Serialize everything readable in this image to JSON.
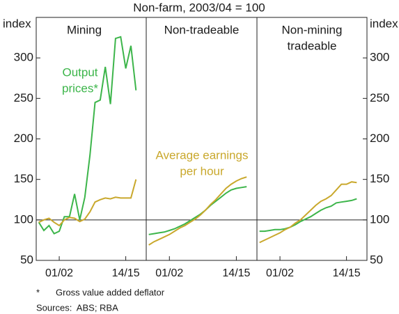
{
  "title": "Non-farm, 2003/04 = 100",
  "footnotes": {
    "marker": "*",
    "note": "Gross value added deflator",
    "sources": "Sources:  ABS; RBA"
  },
  "chart_data": [
    {
      "type": "line",
      "title": [
        "Mining"
      ],
      "ylabel": "index",
      "x": [
        1998,
        1999,
        2000,
        2001,
        2002,
        2003,
        2004,
        2005,
        2006,
        2007,
        2008,
        2009,
        2010,
        2011,
        2012,
        2013,
        2014,
        2015,
        2016,
        2017
      ],
      "series": [
        {
          "color": "#3cb54a",
          "values": [
            97,
            87,
            93,
            83,
            86,
            104,
            104,
            132,
            100,
            128,
            180,
            245,
            248,
            289,
            243,
            324,
            326,
            287,
            315,
            260
          ]
        },
        {
          "color": "#c9a82c",
          "values": [
            97,
            100,
            102,
            97,
            93,
            100,
            103,
            102,
            98,
            101,
            110,
            122,
            125,
            127,
            126,
            128,
            127,
            127,
            127,
            150
          ]
        }
      ],
      "annotations": [
        {
          "lines": [
            "Output",
            "prices*"
          ],
          "color": "#3cb54a"
        }
      ],
      "reference_line": 100,
      "xlim": [
        1997.5,
        2019
      ],
      "xticks": [
        {
          "value": 2002,
          "label": "01/02"
        },
        {
          "value": 2015,
          "label": "14/15"
        }
      ],
      "ylim": [
        50,
        350
      ],
      "yticks": [
        50,
        100,
        150,
        200,
        250,
        300
      ]
    },
    {
      "type": "line",
      "title": [
        "Non-tradeable"
      ],
      "x": [
        1998,
        1999,
        2000,
        2001,
        2002,
        2003,
        2004,
        2005,
        2006,
        2007,
        2008,
        2009,
        2010,
        2011,
        2012,
        2013,
        2014,
        2015,
        2016,
        2017
      ],
      "series": [
        {
          "color": "#3cb54a",
          "values": [
            82,
            83,
            84,
            85,
            87,
            89,
            92,
            95,
            99,
            103,
            107,
            112,
            118,
            123,
            128,
            133,
            137,
            139,
            140,
            141
          ]
        },
        {
          "color": "#c9a82c",
          "values": [
            69,
            73,
            76,
            79,
            82,
            86,
            90,
            93,
            97,
            101,
            106,
            112,
            119,
            125,
            132,
            139,
            144,
            148,
            151,
            153
          ]
        }
      ],
      "annotations": [
        {
          "lines": [
            "Average earnings",
            "per hour"
          ],
          "color": "#c9a82c"
        }
      ],
      "reference_line": 100,
      "xlim": [
        1997.5,
        2019
      ],
      "xticks": [
        {
          "value": 2002,
          "label": "01/02"
        },
        {
          "value": 2015,
          "label": "14/15"
        }
      ],
      "ylim": [
        50,
        350
      ]
    },
    {
      "type": "line",
      "title": [
        "Non-mining",
        "tradeable"
      ],
      "ylabel": "index",
      "x": [
        1998,
        1999,
        2000,
        2001,
        2002,
        2003,
        2004,
        2005,
        2006,
        2007,
        2008,
        2009,
        2010,
        2011,
        2012,
        2013,
        2014,
        2015,
        2016,
        2017
      ],
      "series": [
        {
          "color": "#3cb54a",
          "values": [
            86,
            86,
            87,
            88,
            88,
            89,
            91,
            94,
            98,
            101,
            104,
            108,
            112,
            115,
            117,
            121,
            122,
            123,
            124,
            126
          ]
        },
        {
          "color": "#c9a82c",
          "values": [
            72,
            75,
            78,
            81,
            84,
            88,
            91,
            96,
            100,
            106,
            112,
            118,
            123,
            126,
            130,
            137,
            144,
            144,
            147,
            146
          ]
        }
      ],
      "annotations": [],
      "reference_line": 100,
      "xlim": [
        1997.5,
        2019
      ],
      "xticks": [
        {
          "value": 2002,
          "label": "01/02"
        },
        {
          "value": 2015,
          "label": "14/15"
        }
      ],
      "ylim": [
        50,
        350
      ],
      "yticks": [
        50,
        100,
        150,
        200,
        250,
        300
      ]
    }
  ]
}
